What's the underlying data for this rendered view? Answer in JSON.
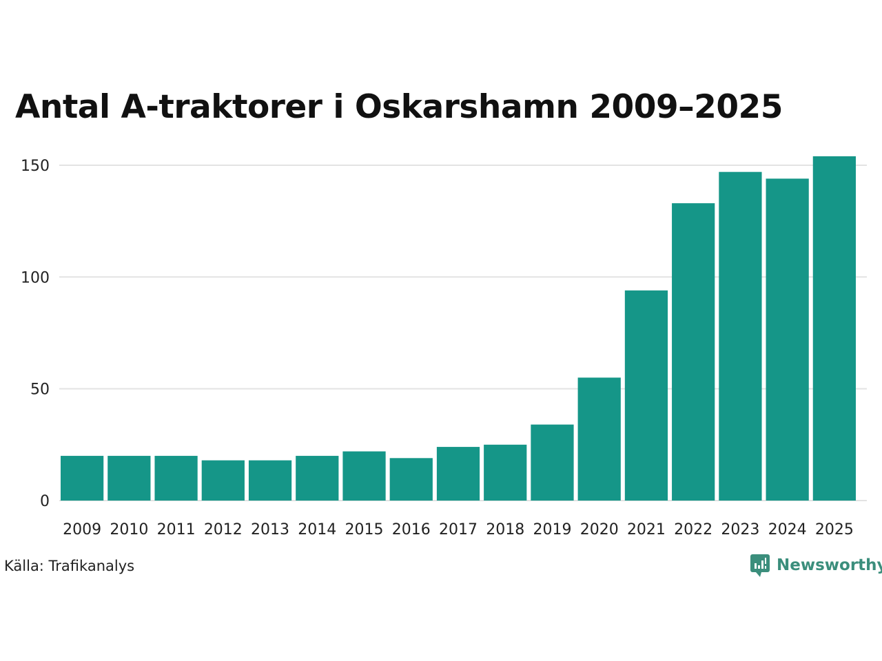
{
  "chart_data": {
    "type": "bar",
    "title": "Antal A-traktorer i Oskarshamn 2009–2025",
    "categories": [
      "2009",
      "2010",
      "2011",
      "2012",
      "2013",
      "2014",
      "2015",
      "2016",
      "2017",
      "2018",
      "2019",
      "2020",
      "2021",
      "2022",
      "2023",
      "2024",
      "2025"
    ],
    "values": [
      20,
      20,
      20,
      18,
      18,
      20,
      22,
      19,
      24,
      25,
      34,
      55,
      94,
      133,
      147,
      144,
      154
    ],
    "ylim": [
      0,
      160
    ],
    "yticks": [
      0,
      50,
      100,
      150
    ],
    "ytick_labels": [
      "0",
      "50",
      "100",
      "150"
    ],
    "grid": true,
    "xlabel": "",
    "ylabel": "",
    "bar_color": "#159688",
    "grid_color": "#e3e3e3"
  },
  "source": "Källa: Trafikanalys",
  "brand": {
    "name": "Newsworthy",
    "icon": "newsworthy-logo-icon",
    "color": "#3b8e7c"
  }
}
